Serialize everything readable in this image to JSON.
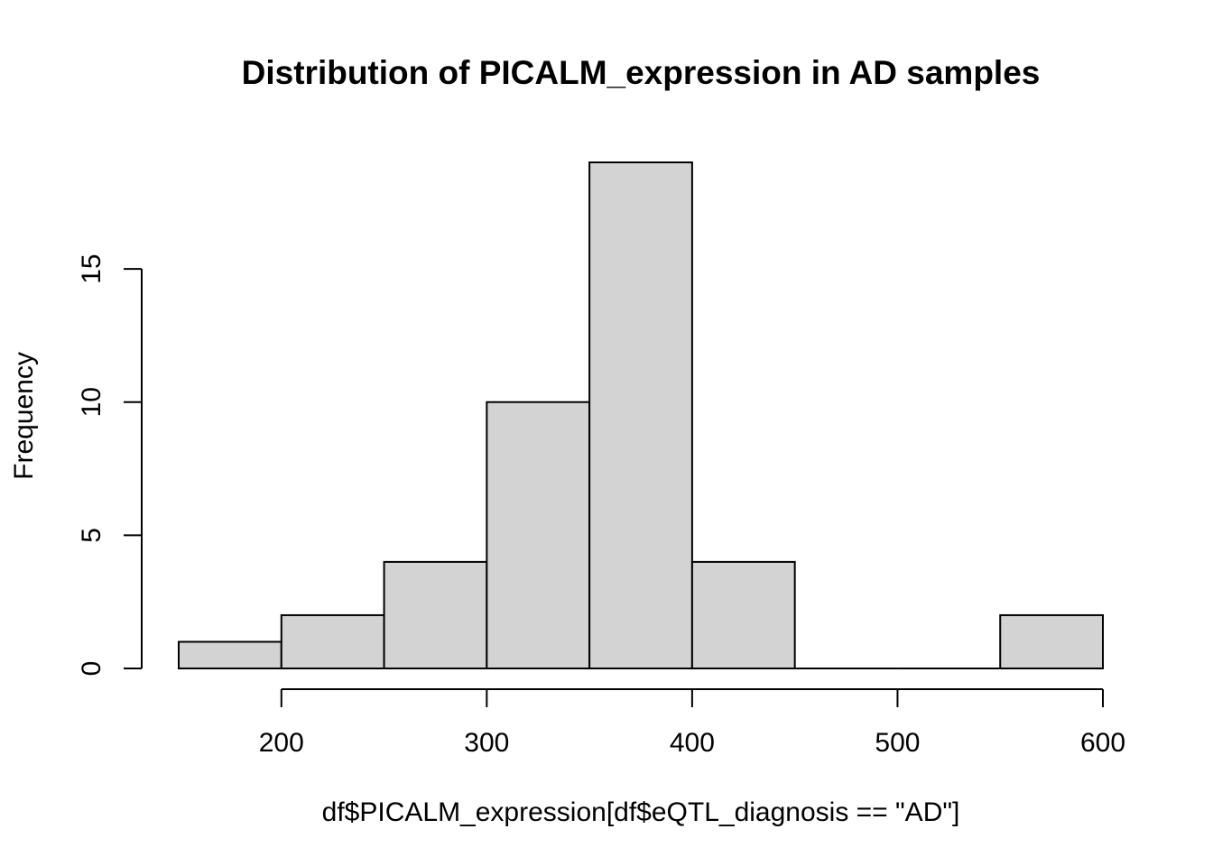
{
  "chart_data": {
    "type": "bar",
    "title": "Distribution of PICALM_expression in AD samples",
    "xlabel": "df$PICALM_expression[df$eQTL_diagnosis == \"AD\"]",
    "ylabel": "Frequency",
    "bins": [
      {
        "from": 150,
        "to": 200,
        "count": 1
      },
      {
        "from": 200,
        "to": 250,
        "count": 2
      },
      {
        "from": 250,
        "to": 300,
        "count": 4
      },
      {
        "from": 300,
        "to": 350,
        "count": 10
      },
      {
        "from": 350,
        "to": 400,
        "count": 19
      },
      {
        "from": 400,
        "to": 450,
        "count": 4
      },
      {
        "from": 450,
        "to": 500,
        "count": 0
      },
      {
        "from": 500,
        "to": 550,
        "count": 0
      },
      {
        "from": 550,
        "to": 600,
        "count": 2
      }
    ],
    "x_ticks": [
      200,
      300,
      400,
      500,
      600
    ],
    "y_ticks": [
      0,
      5,
      10,
      15
    ],
    "xlim": [
      150,
      600
    ],
    "ylim": [
      0,
      19
    ],
    "bar_color": "#d3d3d3",
    "grid": false,
    "legend": "none"
  }
}
